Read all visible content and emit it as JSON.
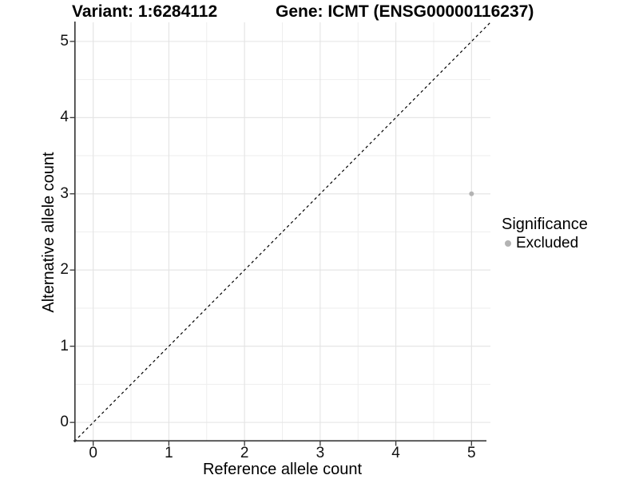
{
  "chart_data": {
    "type": "scatter",
    "title_left": "Variant: 1:6284112",
    "title_right": "Gene: ICMT (ENSG00000116237)",
    "xlabel": "Reference allele count",
    "ylabel": "Alternative allele count",
    "xlim": [
      -0.25,
      5.25
    ],
    "ylim": [
      -0.25,
      5.25
    ],
    "xticks": [
      0,
      1,
      2,
      3,
      4,
      5
    ],
    "yticks": [
      0,
      1,
      2,
      3,
      4,
      5
    ],
    "minor_gridlines": [
      0.5,
      1.5,
      2.5,
      3.5,
      4.5
    ],
    "grid": true,
    "identity_line": {
      "slope": 1,
      "intercept": 0,
      "style": "dashed",
      "color": "#000000"
    },
    "series": [
      {
        "name": "Excluded",
        "color": "#b3b3b3",
        "points": [
          {
            "x": 5,
            "y": 3
          }
        ]
      }
    ],
    "legend": {
      "title": "Significance",
      "position": "right",
      "entries": [
        {
          "label": "Excluded",
          "color": "#b3b3b3"
        }
      ]
    }
  },
  "style": {
    "background": "#ffffff",
    "grid_major_color": "#e3e3e3",
    "grid_minor_color": "#eeeeee",
    "axis_color": "#3a3a3a",
    "tick_color": "#333333",
    "text_color": "#000000",
    "point_color": "#b3b3b3"
  }
}
